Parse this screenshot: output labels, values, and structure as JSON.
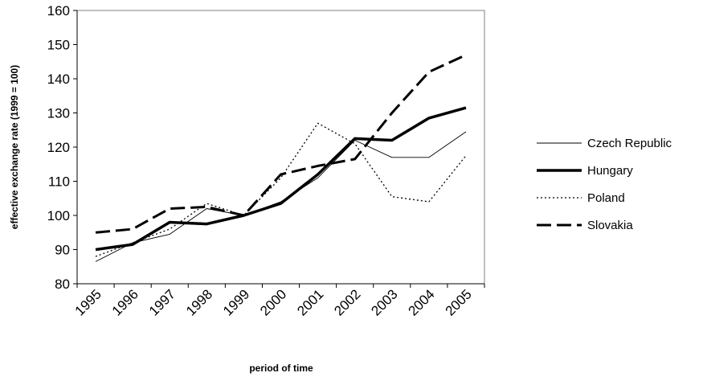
{
  "chart_data": {
    "type": "line",
    "categories": [
      "1995",
      "1996",
      "1997",
      "1998",
      "1999",
      "2000",
      "2001",
      "2002",
      "2003",
      "2004",
      "2005"
    ],
    "xlabel": "period of time",
    "ylabel": "effective exchange rate (1999 = 100)",
    "ylim": [
      80,
      160
    ],
    "yticks": [
      80,
      90,
      100,
      110,
      120,
      130,
      140,
      150,
      160
    ],
    "grid": false,
    "legend_position": "right",
    "series": [
      {
        "name": "Czech Republic",
        "style": "thin-solid",
        "color": "#000000",
        "values": [
          86.5,
          92,
          94.5,
          102,
          100,
          104,
          111,
          122,
          117,
          117,
          124.5
        ]
      },
      {
        "name": "Hungary",
        "style": "thick-solid",
        "color": "#000000",
        "values": [
          90,
          91.5,
          98,
          97.5,
          100,
          103.5,
          112,
          122.5,
          122,
          128.5,
          131.5
        ]
      },
      {
        "name": "Poland",
        "style": "dotted",
        "color": "#000000",
        "values": [
          88,
          92,
          96,
          103.5,
          100,
          111,
          127,
          121,
          105.5,
          104,
          117.5
        ]
      },
      {
        "name": "Slovakia",
        "style": "long-dash",
        "color": "#000000",
        "values": [
          95,
          96,
          102,
          102.5,
          100,
          112,
          114.5,
          116.5,
          130,
          142,
          147
        ]
      }
    ]
  }
}
